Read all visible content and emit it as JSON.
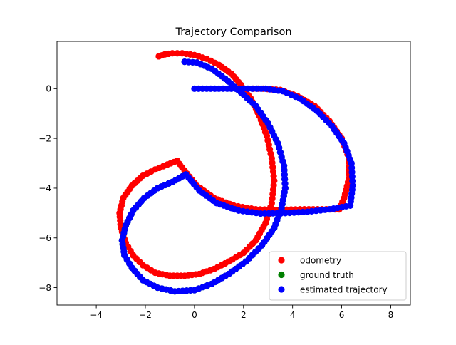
{
  "chart_data": {
    "type": "scatter",
    "title": "Trajectory Comparison",
    "xlabel": "",
    "ylabel": "",
    "xlim": [
      -5.6,
      8.8
    ],
    "ylim": [
      -8.7,
      1.9
    ],
    "xticks": [
      -4,
      -2,
      0,
      2,
      4,
      6,
      8
    ],
    "yticks": [
      -8,
      -6,
      -4,
      -2,
      0
    ],
    "grid": false,
    "legend_position": "lower-right",
    "series": [
      {
        "name": "odometry",
        "color": "#ff0000",
        "points": [
          [
            -1.45,
            1.3
          ],
          [
            -1.2,
            1.38
          ],
          [
            -0.9,
            1.42
          ],
          [
            -0.5,
            1.42
          ],
          [
            0.0,
            1.35
          ],
          [
            0.5,
            1.2
          ],
          [
            1.0,
            0.95
          ],
          [
            1.5,
            0.6
          ],
          [
            1.9,
            0.15
          ],
          [
            2.3,
            -0.4
          ],
          [
            2.65,
            -1.1
          ],
          [
            2.95,
            -1.9
          ],
          [
            3.15,
            -2.8
          ],
          [
            3.25,
            -3.7
          ],
          [
            3.15,
            -4.6
          ],
          [
            2.9,
            -5.4
          ],
          [
            2.5,
            -6.1
          ],
          [
            2.0,
            -6.6
          ],
          [
            1.4,
            -6.95
          ],
          [
            0.8,
            -7.25
          ],
          [
            0.2,
            -7.45
          ],
          [
            -0.4,
            -7.52
          ],
          [
            -1.0,
            -7.52
          ],
          [
            -1.6,
            -7.4
          ],
          [
            -2.1,
            -7.1
          ],
          [
            -2.5,
            -6.7
          ],
          [
            -2.8,
            -6.2
          ],
          [
            -3.0,
            -5.6
          ],
          [
            -3.05,
            -5.0
          ],
          [
            -2.9,
            -4.4
          ],
          [
            -2.55,
            -3.9
          ],
          [
            -2.1,
            -3.5
          ],
          [
            -1.6,
            -3.25
          ],
          [
            -1.1,
            -3.05
          ],
          [
            -0.7,
            -2.9
          ],
          [
            -0.4,
            -3.3
          ],
          [
            0.1,
            -3.9
          ],
          [
            0.8,
            -4.4
          ],
          [
            1.6,
            -4.7
          ],
          [
            2.5,
            -4.85
          ],
          [
            3.4,
            -4.88
          ],
          [
            4.3,
            -4.85
          ],
          [
            5.2,
            -4.85
          ],
          [
            5.9,
            -4.85
          ],
          [
            6.1,
            -4.4
          ],
          [
            6.3,
            -3.6
          ],
          [
            6.3,
            -2.8
          ],
          [
            6.0,
            -2.0
          ],
          [
            5.5,
            -1.3
          ],
          [
            4.9,
            -0.7
          ],
          [
            4.2,
            -0.3
          ],
          [
            3.5,
            -0.05
          ],
          [
            2.8,
            0.0
          ],
          [
            2.4,
            0.0
          ]
        ]
      },
      {
        "name": "ground truth",
        "color": "#008000",
        "points": [
          [
            -0.35,
            -3.45
          ],
          [
            -0.9,
            -3.75
          ],
          [
            -1.5,
            -4.0
          ],
          [
            -2.05,
            -4.4
          ],
          [
            -2.5,
            -4.9
          ],
          [
            -2.8,
            -5.5
          ],
          [
            -2.95,
            -6.1
          ],
          [
            -2.85,
            -6.7
          ],
          [
            -2.55,
            -7.2
          ],
          [
            -2.1,
            -7.7
          ],
          [
            -1.5,
            -8.0
          ],
          [
            -0.8,
            -8.15
          ],
          [
            0.0,
            -8.1
          ],
          [
            0.7,
            -7.85
          ],
          [
            1.4,
            -7.45
          ],
          [
            2.1,
            -6.95
          ],
          [
            2.75,
            -6.3
          ],
          [
            3.25,
            -5.6
          ],
          [
            3.55,
            -4.8
          ],
          [
            3.7,
            -4.0
          ],
          [
            3.65,
            -3.1
          ],
          [
            3.4,
            -2.2
          ],
          [
            3.0,
            -1.4
          ],
          [
            2.5,
            -0.7
          ],
          [
            1.9,
            -0.15
          ],
          [
            1.25,
            0.4
          ],
          [
            0.7,
            0.8
          ],
          [
            0.1,
            1.05
          ],
          [
            -0.4,
            1.08
          ]
        ]
      },
      {
        "name": "estimated trajectory",
        "color": "#0000ff",
        "points": [
          [
            -0.4,
            1.08
          ],
          [
            0.1,
            1.05
          ],
          [
            0.7,
            0.8
          ],
          [
            1.25,
            0.4
          ],
          [
            1.9,
            -0.15
          ],
          [
            2.5,
            -0.7
          ],
          [
            3.0,
            -1.4
          ],
          [
            3.4,
            -2.2
          ],
          [
            3.65,
            -3.1
          ],
          [
            3.7,
            -4.0
          ],
          [
            3.55,
            -4.8
          ],
          [
            3.25,
            -5.6
          ],
          [
            2.75,
            -6.3
          ],
          [
            2.1,
            -6.95
          ],
          [
            1.4,
            -7.45
          ],
          [
            0.7,
            -7.85
          ],
          [
            0.0,
            -8.1
          ],
          [
            -0.8,
            -8.15
          ],
          [
            -1.5,
            -8.0
          ],
          [
            -2.1,
            -7.7
          ],
          [
            -2.55,
            -7.2
          ],
          [
            -2.85,
            -6.7
          ],
          [
            -2.95,
            -6.1
          ],
          [
            -2.8,
            -5.5
          ],
          [
            -2.5,
            -4.9
          ],
          [
            -2.05,
            -4.4
          ],
          [
            -1.5,
            -4.0
          ],
          [
            -0.9,
            -3.75
          ],
          [
            -0.35,
            -3.45
          ],
          [
            0.2,
            -4.1
          ],
          [
            0.9,
            -4.6
          ],
          [
            1.8,
            -4.9
          ],
          [
            2.7,
            -5.02
          ],
          [
            3.7,
            -5.0
          ],
          [
            4.6,
            -4.95
          ],
          [
            5.5,
            -4.85
          ],
          [
            6.35,
            -4.7
          ],
          [
            6.45,
            -3.9
          ],
          [
            6.4,
            -3.0
          ],
          [
            6.1,
            -2.2
          ],
          [
            5.6,
            -1.5
          ],
          [
            5.0,
            -0.9
          ],
          [
            4.3,
            -0.4
          ],
          [
            3.6,
            -0.1
          ],
          [
            2.9,
            0.0
          ],
          [
            2.0,
            0.0
          ],
          [
            1.0,
            0.0
          ],
          [
            0.0,
            0.0
          ]
        ]
      }
    ]
  }
}
